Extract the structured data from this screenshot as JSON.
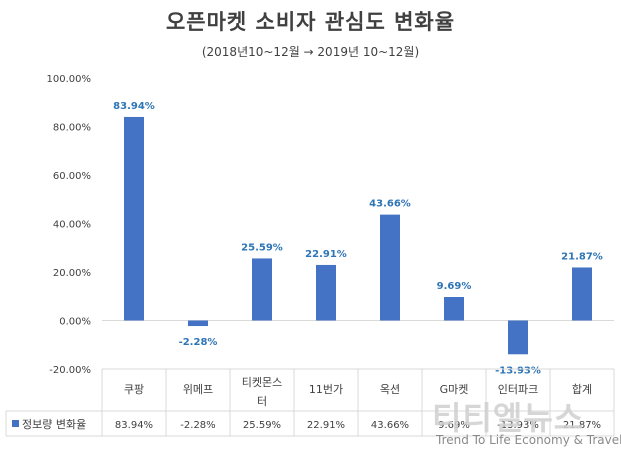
{
  "chart_data": {
    "type": "bar",
    "title": "오픈마켓 소비자 관심도 변화율",
    "subtitle": "(2018년10~12월 → 2019년 10~12월)",
    "categories": [
      "쿠팡",
      "위메프",
      "티켓몬스터",
      "11번가",
      "옥션",
      "G마켓",
      "인터파크",
      "합계"
    ],
    "series": [
      {
        "name": "정보량 변화율",
        "values": [
          83.94,
          -2.28,
          25.59,
          22.91,
          43.66,
          9.69,
          -13.93,
          21.87
        ],
        "labels": [
          "83.94%",
          "-2.28%",
          "25.59%",
          "22.91%",
          "43.66%",
          "9.69%",
          "-13.93%",
          "21.87%"
        ],
        "color": "#4472c4"
      }
    ],
    "y_ticks": [
      100,
      80,
      60,
      40,
      20,
      0,
      -20
    ],
    "y_tick_labels": [
      "100.00%",
      "80.00%",
      "60.00%",
      "40.00%",
      "20.00%",
      "0.00%",
      "-20.00%"
    ],
    "ylim": [
      -20,
      100
    ],
    "grid": false,
    "legend": "data-table",
    "data_table": true
  },
  "colors": {
    "bar": "#4472c4",
    "data_label": "#2e75b6",
    "axis": "#d9d9d9",
    "text": "#404040"
  },
  "watermark": {
    "main": "티티엘뉴스",
    "sub": "Trend To Life Economy & Travel"
  }
}
